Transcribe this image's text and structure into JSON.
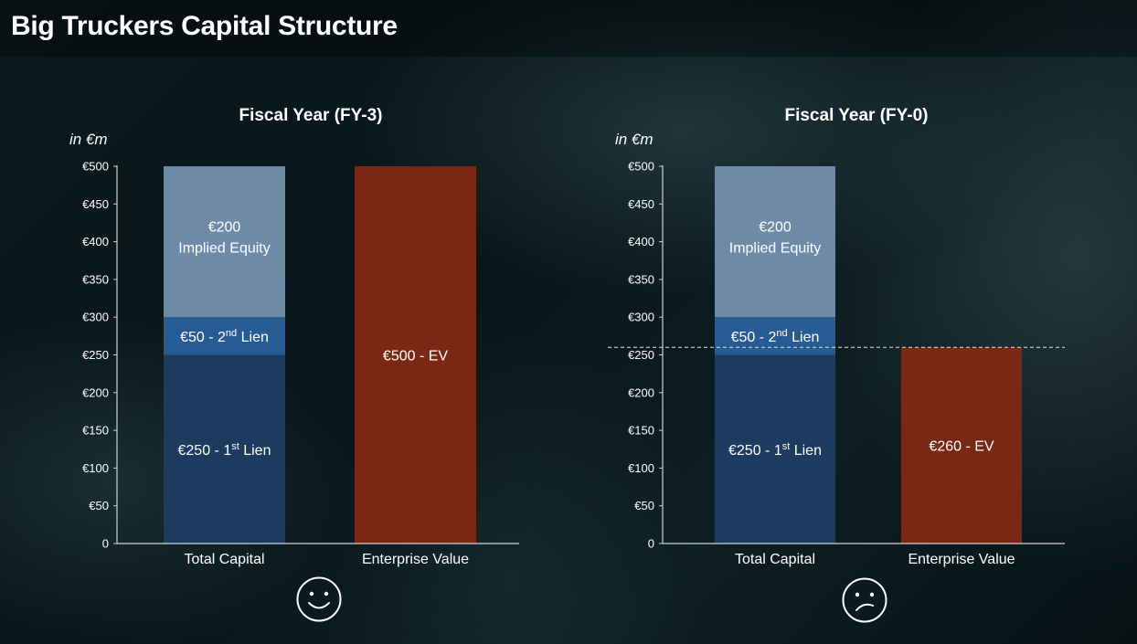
{
  "title": "Big Truckers Capital Structure",
  "colors": {
    "first_lien": "#1d3a5f",
    "second_lien": "#275c93",
    "implied_equity": "#6d8ba6",
    "enterprise_value": "#7a2716",
    "axis": "#d0d0d0"
  },
  "chart_data": [
    {
      "type": "bar",
      "title": "Fiscal Year (FY-3)",
      "ylabel": "in €m",
      "categories": [
        "Total Capital",
        "Enterprise Value"
      ],
      "ylim": [
        0,
        500
      ],
      "yticks": [
        "0",
        "€50",
        "€100",
        "€150",
        "€200",
        "€250",
        "€300",
        "€350",
        "€400",
        "€450",
        "€500"
      ],
      "stacks": [
        {
          "category": "Total Capital",
          "name": "1st Lien",
          "value": 250,
          "color": "#1d3a5f",
          "label": [
            "€250 - 1",
            "st",
            " Lien"
          ]
        },
        {
          "category": "Total Capital",
          "name": "2nd Lien",
          "value": 50,
          "color": "#275c93",
          "label": [
            "€50 - 2",
            "nd",
            " Lien"
          ]
        },
        {
          "category": "Total Capital",
          "name": "Implied Equity",
          "value": 200,
          "color": "#6d8ba6",
          "label_lines": [
            "€200",
            "Implied Equity"
          ]
        },
        {
          "category": "Enterprise Value",
          "name": "EV",
          "value": 500,
          "color": "#7a2716",
          "label": [
            "€500 - EV"
          ]
        }
      ],
      "reference_line": null,
      "sentiment": "happy-face-icon"
    },
    {
      "type": "bar",
      "title": "Fiscal Year (FY-0)",
      "ylabel": "in €m",
      "categories": [
        "Total Capital",
        "Enterprise Value"
      ],
      "ylim": [
        0,
        500
      ],
      "yticks": [
        "0",
        "€50",
        "€100",
        "€150",
        "€200",
        "€250",
        "€300",
        "€350",
        "€400",
        "€450",
        "€500"
      ],
      "stacks": [
        {
          "category": "Total Capital",
          "name": "1st Lien",
          "value": 250,
          "color": "#1d3a5f",
          "label": [
            "€250 - 1",
            "st",
            " Lien"
          ]
        },
        {
          "category": "Total Capital",
          "name": "2nd Lien",
          "value": 50,
          "color": "#275c93",
          "label": [
            "€50 - 2",
            "nd",
            " Lien"
          ]
        },
        {
          "category": "Total Capital",
          "name": "Implied Equity",
          "value": 200,
          "color": "#6d8ba6",
          "label_lines": [
            "€200",
            "Implied Equity"
          ]
        },
        {
          "category": "Enterprise Value",
          "name": "EV",
          "value": 260,
          "color": "#7a2716",
          "label": [
            "€260 - EV"
          ]
        }
      ],
      "reference_line": 260,
      "sentiment": "sad-face-icon"
    }
  ]
}
